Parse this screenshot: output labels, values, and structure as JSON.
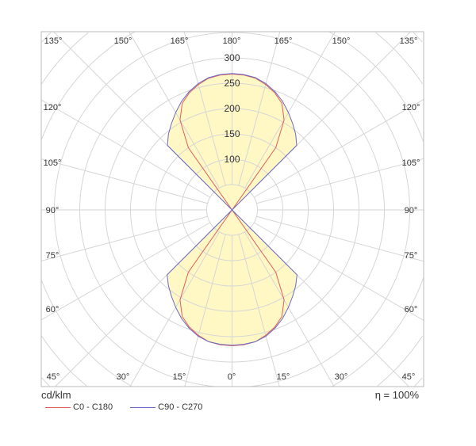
{
  "chart_data": {
    "type": "polar",
    "unit_label": "cd/klm",
    "efficiency_label": "η = 100%",
    "radial_ticks": [
      100,
      150,
      200,
      250,
      300
    ],
    "radial_grid_step": 50,
    "radial_max": 500,
    "angle_grid_step_deg": 15,
    "top_angle_labels": [
      "135°",
      "150°",
      "165°",
      "180°",
      "165°",
      "150°",
      "135°"
    ],
    "bottom_angle_labels": [
      "45°",
      "30°",
      "15°",
      "0°",
      "15°",
      "30°",
      "45°"
    ],
    "side_angle_labels": [
      "120°",
      "105°",
      "90°",
      "75°",
      "60°"
    ],
    "grid": true,
    "fill_color": "#fff7c4",
    "series": [
      {
        "name": "C0 - C180",
        "color": "#e06060",
        "angles": [
          0,
          5,
          10,
          15,
          20,
          25,
          30,
          35,
          40
        ],
        "values_lower": [
          268,
          267,
          264,
          256,
          246,
          232,
          205,
          150,
          0
        ],
        "values_upper": [
          268,
          267,
          264,
          256,
          246,
          232,
          205,
          150,
          0
        ]
      },
      {
        "name": "C90 - C270",
        "color": "#6a6ac8",
        "angles": [
          0,
          5,
          10,
          15,
          20,
          25,
          30,
          35,
          40,
          45,
          50
        ],
        "values_lower": [
          267,
          266,
          264,
          258,
          248,
          236,
          222,
          208,
          195,
          181,
          0
        ],
        "values_upper": [
          269,
          268,
          265,
          258,
          248,
          236,
          222,
          208,
          195,
          180,
          0
        ]
      }
    ]
  }
}
